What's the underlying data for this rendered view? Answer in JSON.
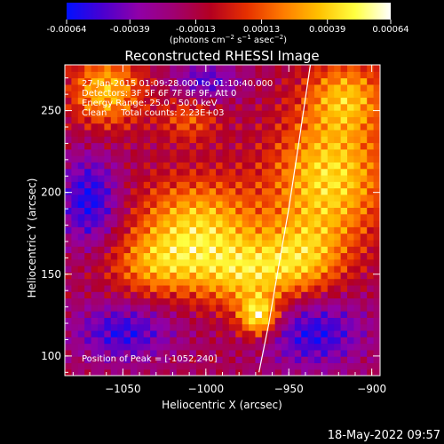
{
  "colorbar": {
    "ticks": [
      "-0.00064",
      "-0.00039",
      "-0.00013",
      "0.00013",
      "0.00039",
      "0.00064"
    ],
    "tick_values": [
      -0.00064,
      -0.00039,
      -0.00013,
      0.00013,
      0.00039,
      0.00064
    ],
    "range": [
      -0.00064,
      0.00064
    ],
    "colors": [
      "#0010ff",
      "#4a00d0",
      "#9000a8",
      "#a00070",
      "#b40020",
      "#e63000",
      "#ff7a00",
      "#ffc000",
      "#ffff40",
      "#ffffff"
    ]
  },
  "chart_data": {
    "type": "heatmap",
    "title": "Reconstructed RHESSI Image",
    "xlabel": "Heliocentric X (arcsec)",
    "ylabel": "Heliocentric Y (arcsec)",
    "xlim": [
      -1085,
      -895
    ],
    "ylim": [
      88,
      278
    ],
    "x_ticks": [
      "−1050",
      "−1000",
      "−950",
      "−900"
    ],
    "x_tick_values": [
      -1050,
      -1000,
      -950,
      -900
    ],
    "y_ticks": [
      "100",
      "150",
      "200",
      "250"
    ],
    "y_tick_values": [
      100,
      150,
      200,
      250
    ],
    "info": {
      "time_range": "27-Jan-2015 01:09:28.000 to 01:10:40.000",
      "detectors": "Detectors: 3F 5F 6F 7F 8F 9F, Att 0",
      "energy": "Energy Range: 25.0 - 50.0 keV",
      "method_counts": "Clean     Total counts: 2.23E+03",
      "peak": "Position of Peak = [-1052,240]"
    },
    "peak": [
      -1052,
      240
    ],
    "limb_points": [
      [
        -968,
        90
      ],
      [
        -962,
        120
      ],
      [
        -957,
        150
      ],
      [
        -950,
        190
      ],
      [
        -944,
        230
      ],
      [
        -937,
        278
      ]
    ],
    "sources": [
      {
        "x": -1060,
        "y": 262,
        "amp": 0.8,
        "rx": 22,
        "ry": 22
      },
      {
        "x": -1010,
        "y": 245,
        "amp": 0.45,
        "rx": 18,
        "ry": 14
      },
      {
        "x": -1005,
        "y": 180,
        "amp": 0.82,
        "rx": 38,
        "ry": 30
      },
      {
        "x": -1030,
        "y": 155,
        "amp": 0.55,
        "rx": 30,
        "ry": 20
      },
      {
        "x": -975,
        "y": 150,
        "amp": 0.7,
        "rx": 30,
        "ry": 22
      },
      {
        "x": -968,
        "y": 124,
        "amp": 1.0,
        "rx": 12,
        "ry": 12
      },
      {
        "x": -925,
        "y": 210,
        "amp": 0.9,
        "rx": 35,
        "ry": 40
      },
      {
        "x": -915,
        "y": 260,
        "amp": 0.65,
        "rx": 25,
        "ry": 22
      },
      {
        "x": -940,
        "y": 160,
        "amp": 0.6,
        "rx": 25,
        "ry": 25
      },
      {
        "x": -1070,
        "y": 195,
        "amp": -0.7,
        "rx": 18,
        "ry": 28
      },
      {
        "x": -1050,
        "y": 115,
        "amp": -0.6,
        "rx": 30,
        "ry": 18
      },
      {
        "x": -935,
        "y": 115,
        "amp": -0.65,
        "rx": 30,
        "ry": 22
      },
      {
        "x": -1000,
        "y": 268,
        "amp": -0.5,
        "rx": 20,
        "ry": 12
      }
    ]
  },
  "footer": {
    "timestamp": "18-May-2022 09:57"
  }
}
